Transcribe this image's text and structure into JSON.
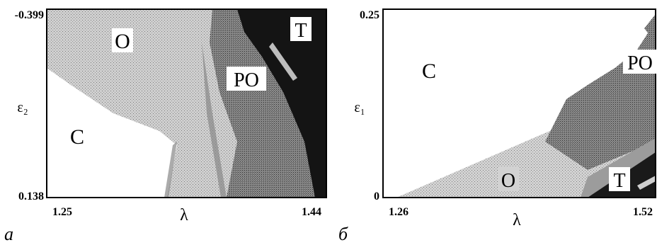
{
  "panels": [
    {
      "caption": "a",
      "xlabel": "λ",
      "ylabel": "ε₂",
      "x_ticks": [
        "1.25",
        "1.44"
      ],
      "y_ticks": [
        "-0.399",
        "0.138"
      ],
      "region_labels": [
        "O",
        "PO",
        "T",
        "C"
      ]
    },
    {
      "caption": "б",
      "xlabel": "λ",
      "ylabel": "ε₁",
      "x_ticks": [
        "1.26",
        "1.52"
      ],
      "y_ticks": [
        "0.25",
        "0"
      ],
      "region_labels": [
        "C",
        "PO",
        "O",
        "T"
      ]
    }
  ],
  "chart_data": [
    {
      "type": "heatmap",
      "xlabel": "λ",
      "ylabel": "ε₂",
      "xlim": [
        1.25,
        1.44
      ],
      "ylim": [
        -0.399,
        0.138
      ],
      "y_axis_inverted": true,
      "regions": [
        "C",
        "O",
        "PO",
        "T"
      ],
      "region_shading": {
        "C": "#ffffff",
        "O": "#cdcdcd",
        "PO": "#8f8f8f",
        "T": "#141414"
      },
      "caption": "a"
    },
    {
      "type": "heatmap",
      "xlabel": "λ",
      "ylabel": "ε₁",
      "xlim": [
        1.26,
        1.52
      ],
      "ylim": [
        0,
        0.25
      ],
      "regions": [
        "C",
        "O",
        "PO",
        "T"
      ],
      "region_shading": {
        "C": "#ffffff",
        "O": "#cdcdcd",
        "PO": "#8f8f8f",
        "T": "#141414"
      },
      "caption": "б"
    }
  ]
}
